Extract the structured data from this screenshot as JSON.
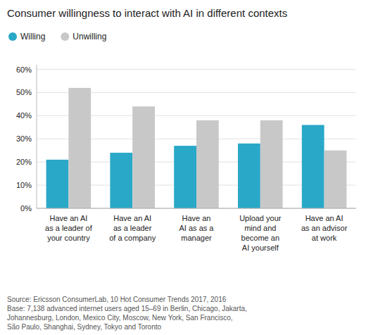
{
  "chart_data": {
    "type": "bar",
    "title": "Consumer willingness to interact with AI in different contexts",
    "categories": [
      "Have an AI\nas a leader of\nyour country",
      "Have an AI\nas a leader\nof a company",
      "Have an\nAI as as a\nmanager",
      "Upload your\nmind and\nbecome an\nAI yourself",
      "Have an AI\nas an advisor\nat work"
    ],
    "series": [
      {
        "name": "Willing",
        "color": "#29a8c8",
        "values": [
          21,
          24,
          27,
          28,
          36
        ]
      },
      {
        "name": "Unwilling",
        "color": "#c8c8c8",
        "values": [
          52,
          44,
          38,
          38,
          25
        ]
      }
    ],
    "ylim": [
      0,
      62
    ],
    "yticks": [
      {
        "value": 0,
        "label": "0%"
      },
      {
        "value": 10,
        "label": "10%"
      },
      {
        "value": 20,
        "label": "20%"
      },
      {
        "value": 30,
        "label": "30%"
      },
      {
        "value": 40,
        "label": "40%"
      },
      {
        "value": 50,
        "label": "50%"
      },
      {
        "value": 60,
        "label": "60%"
      }
    ],
    "grid": true,
    "legend": "upper left",
    "annotations": [
      "Source: Ericsson ConsumerLab, 10 Hot Consumer Trends 2017, 2016\nBase: 7,138 advanced internet users aged 15–69 in Berlin, Chicago, Jakarta,\nJohannesburg, London, Mexico City, Moscow, New York, San Francisco,\nSão Paulo, Shanghai, Sydney, Tokyo and Toronto"
    ]
  }
}
